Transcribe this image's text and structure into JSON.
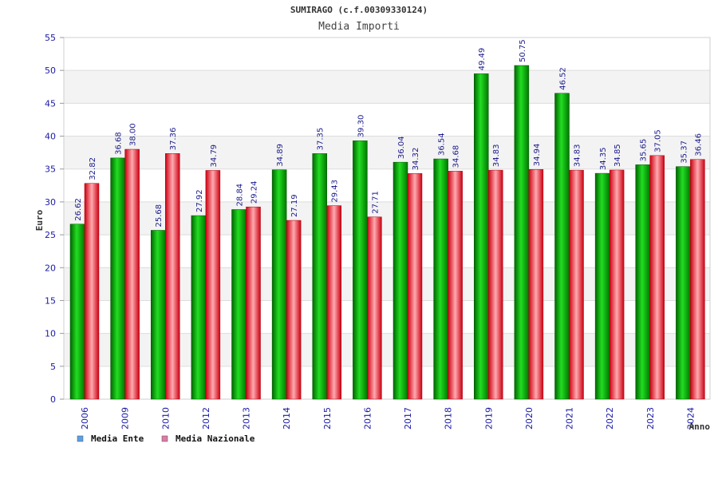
{
  "chart_data": {
    "type": "bar",
    "title": "SUMIRAGO (c.f.00309330124)",
    "subtitle": "Media Importi",
    "xlabel": "Anno",
    "ylabel": "Euro",
    "ylim": [
      0,
      55
    ],
    "yticks": [
      0,
      5,
      10,
      15,
      20,
      25,
      30,
      35,
      40,
      45,
      50,
      55
    ],
    "categories": [
      "2006",
      "2009",
      "2010",
      "2012",
      "2013",
      "2014",
      "2015",
      "2016",
      "2017",
      "2018",
      "2019",
      "2020",
      "2021",
      "2022",
      "2023",
      "2024"
    ],
    "series": [
      {
        "name": "Media Ente",
        "color": "#00bb00",
        "legend_color": "#5aa0e8",
        "values": [
          26.62,
          36.68,
          25.68,
          27.92,
          28.84,
          34.89,
          37.35,
          39.3,
          36.04,
          36.54,
          49.49,
          50.75,
          46.52,
          34.35,
          35.65,
          35.37
        ],
        "labels": [
          "26.62",
          "36.68",
          "25.68",
          "27.92",
          "28.84",
          "34.89",
          "37.35",
          "39.30",
          "36.04",
          "36.54",
          "49.49",
          "50.75",
          "46.52",
          "34.35",
          "35.65",
          "35.37"
        ]
      },
      {
        "name": "Media Nazionale",
        "color": "#ee1122",
        "legend_color": "#e07aa8",
        "values": [
          32.82,
          38.0,
          37.36,
          34.79,
          29.24,
          27.19,
          29.43,
          27.71,
          34.32,
          34.68,
          34.83,
          34.94,
          34.83,
          34.85,
          37.05,
          36.46
        ],
        "labels": [
          "32.82",
          "38.00",
          "37.36",
          "34.79",
          "29.24",
          "27.19",
          "29.43",
          "27.71",
          "34.32",
          "34.68",
          "34.83",
          "34.94",
          "34.83",
          "34.85",
          "37.05",
          "36.46"
        ]
      }
    ],
    "grid": true,
    "legend_position": "bottom-left"
  }
}
